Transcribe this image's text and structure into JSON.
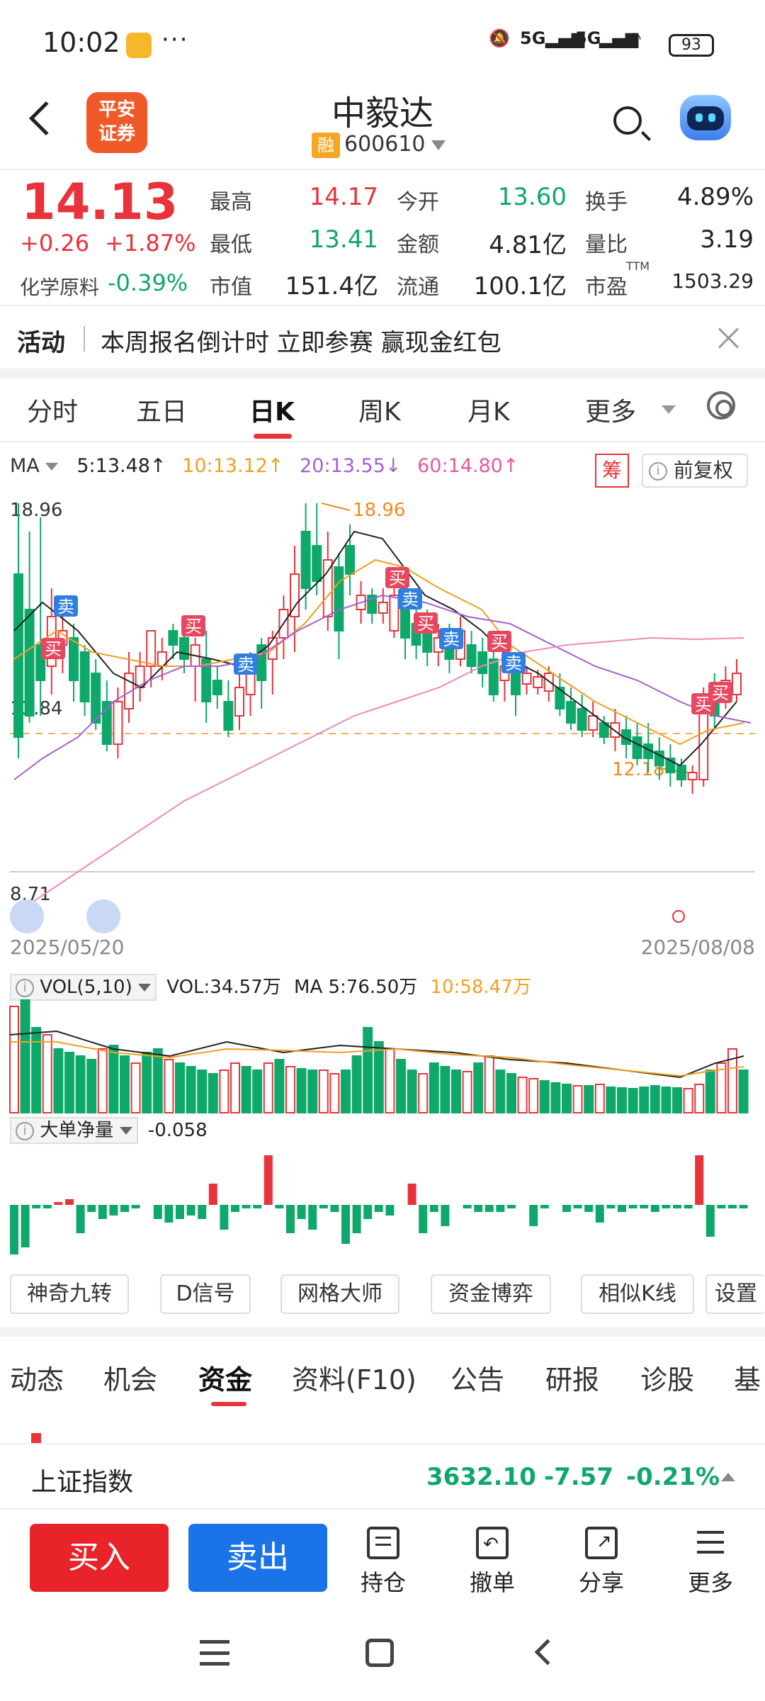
{
  "status_bar": {
    "time": "10:02",
    "more": "···",
    "net1": "5G",
    "net2": "5G",
    "battery": "93"
  },
  "header": {
    "logo_text": "平安\n证券",
    "name": "中毅达",
    "rong": "融",
    "code": "600610"
  },
  "quote": {
    "price": "14.13",
    "change": "+0.26",
    "change_pct": "+1.87%",
    "sector": "化学原料",
    "sector_pct": "-0.39%",
    "fields": [
      {
        "label": "最高",
        "value": "14.17",
        "color": "red"
      },
      {
        "label": "最低",
        "value": "13.41",
        "color": "green"
      },
      {
        "label": "市值",
        "value": "151.4亿",
        "color": "black"
      },
      {
        "label": "今开",
        "value": "13.60",
        "color": "green"
      },
      {
        "label": "金额",
        "value": "4.81亿",
        "color": "black"
      },
      {
        "label": "流通",
        "value": "100.1亿",
        "color": "black"
      },
      {
        "label": "换手",
        "value": "4.89%",
        "color": "black"
      },
      {
        "label": "量比",
        "value": "3.19",
        "color": "black"
      },
      {
        "label": "市盈",
        "value": "1503.29",
        "color": "black"
      }
    ],
    "ttm": "TTM"
  },
  "activity": {
    "tag": "活动",
    "text": "本周报名倒计时 立即参赛 赢现金红包"
  },
  "ktabs": [
    "分时",
    "五日",
    "日K",
    "周K",
    "月K",
    "更多"
  ],
  "ma_row": {
    "label": "MA",
    "ma5": "5:13.48↑",
    "ma10": "10:13.12↑",
    "ma20": "20:13.55↓",
    "ma60": "60:14.80↑",
    "chou": "筹",
    "fuquan": "前复权"
  },
  "chart_data": {
    "type": "candlestick",
    "y_top": "18.96",
    "y_mid": "13.84",
    "y_bottom": "8.71",
    "annot_high": "18.96",
    "annot_low": "12.18",
    "date_start": "2025/05/20",
    "date_end": "2025/08/08",
    "signals": [
      "卖",
      "买",
      "买",
      "卖",
      "买",
      "卖",
      "买",
      "卖",
      "买",
      "卖",
      "买",
      "买"
    ]
  },
  "vol_row": {
    "selector": "VOL(5,10)",
    "vol": "VOL:34.57万",
    "ma5": "MA 5:76.50万",
    "ma10": "10:58.47万"
  },
  "dd_row": {
    "selector": "大单净量",
    "value": "-0.058"
  },
  "tools": [
    "神奇九转",
    "D信号",
    "网格大师",
    "资金博弈",
    "相似K线",
    "设置"
  ],
  "subtabs": [
    "动态",
    "机会",
    "资金",
    "资料(F10)",
    "公告",
    "研报",
    "诊股",
    "基"
  ],
  "index_bar": {
    "name": "上证指数",
    "value": "3632.10",
    "change": "-7.57",
    "pct": "-0.21%"
  },
  "actions": {
    "buy": "买入",
    "sell": "卖出",
    "hold": "持仓",
    "cancel": "撤单",
    "share": "分享",
    "more": "更多"
  }
}
